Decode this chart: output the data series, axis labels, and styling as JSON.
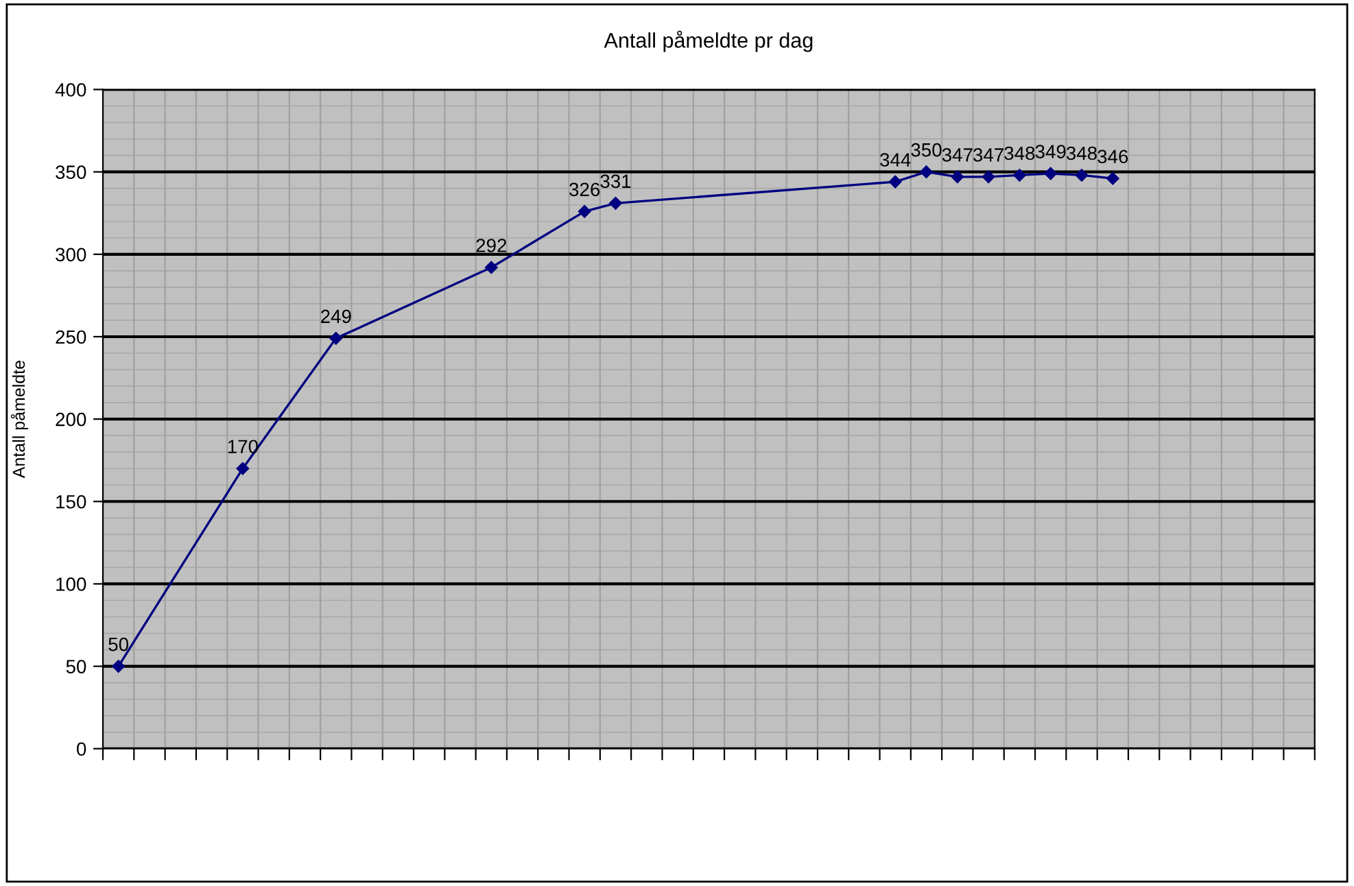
{
  "chart_data": {
    "type": "line",
    "title": "Antall påmeldte pr dag",
    "ylabel": "Antall påmeldte",
    "categories": [
      null,
      null,
      null,
      null,
      null,
      null,
      null,
      null,
      null,
      null,
      null,
      null,
      null,
      null,
      null,
      null,
      null,
      null,
      null,
      null,
      null,
      null,
      null,
      null,
      null,
      null,
      null,
      null,
      null,
      null,
      null,
      null,
      null,
      null,
      null,
      null,
      null,
      null,
      null
    ],
    "series": [
      {
        "color": "#000080",
        "values": [
          50,
          null,
          null,
          null,
          170,
          null,
          null,
          249,
          null,
          null,
          null,
          null,
          292,
          null,
          null,
          326,
          331,
          null,
          null,
          null,
          null,
          null,
          null,
          null,
          null,
          344,
          350,
          347,
          347,
          348,
          349,
          348,
          346,
          null,
          null,
          null,
          null,
          null,
          null
        ]
      }
    ],
    "ylim": [
      0,
      400
    ],
    "yticks": [
      0,
      50,
      100,
      150,
      200,
      250,
      300,
      350,
      400
    ],
    "grid": true,
    "marker": "diamond",
    "line_style": "solid",
    "data_labels": true,
    "legend": false
  }
}
